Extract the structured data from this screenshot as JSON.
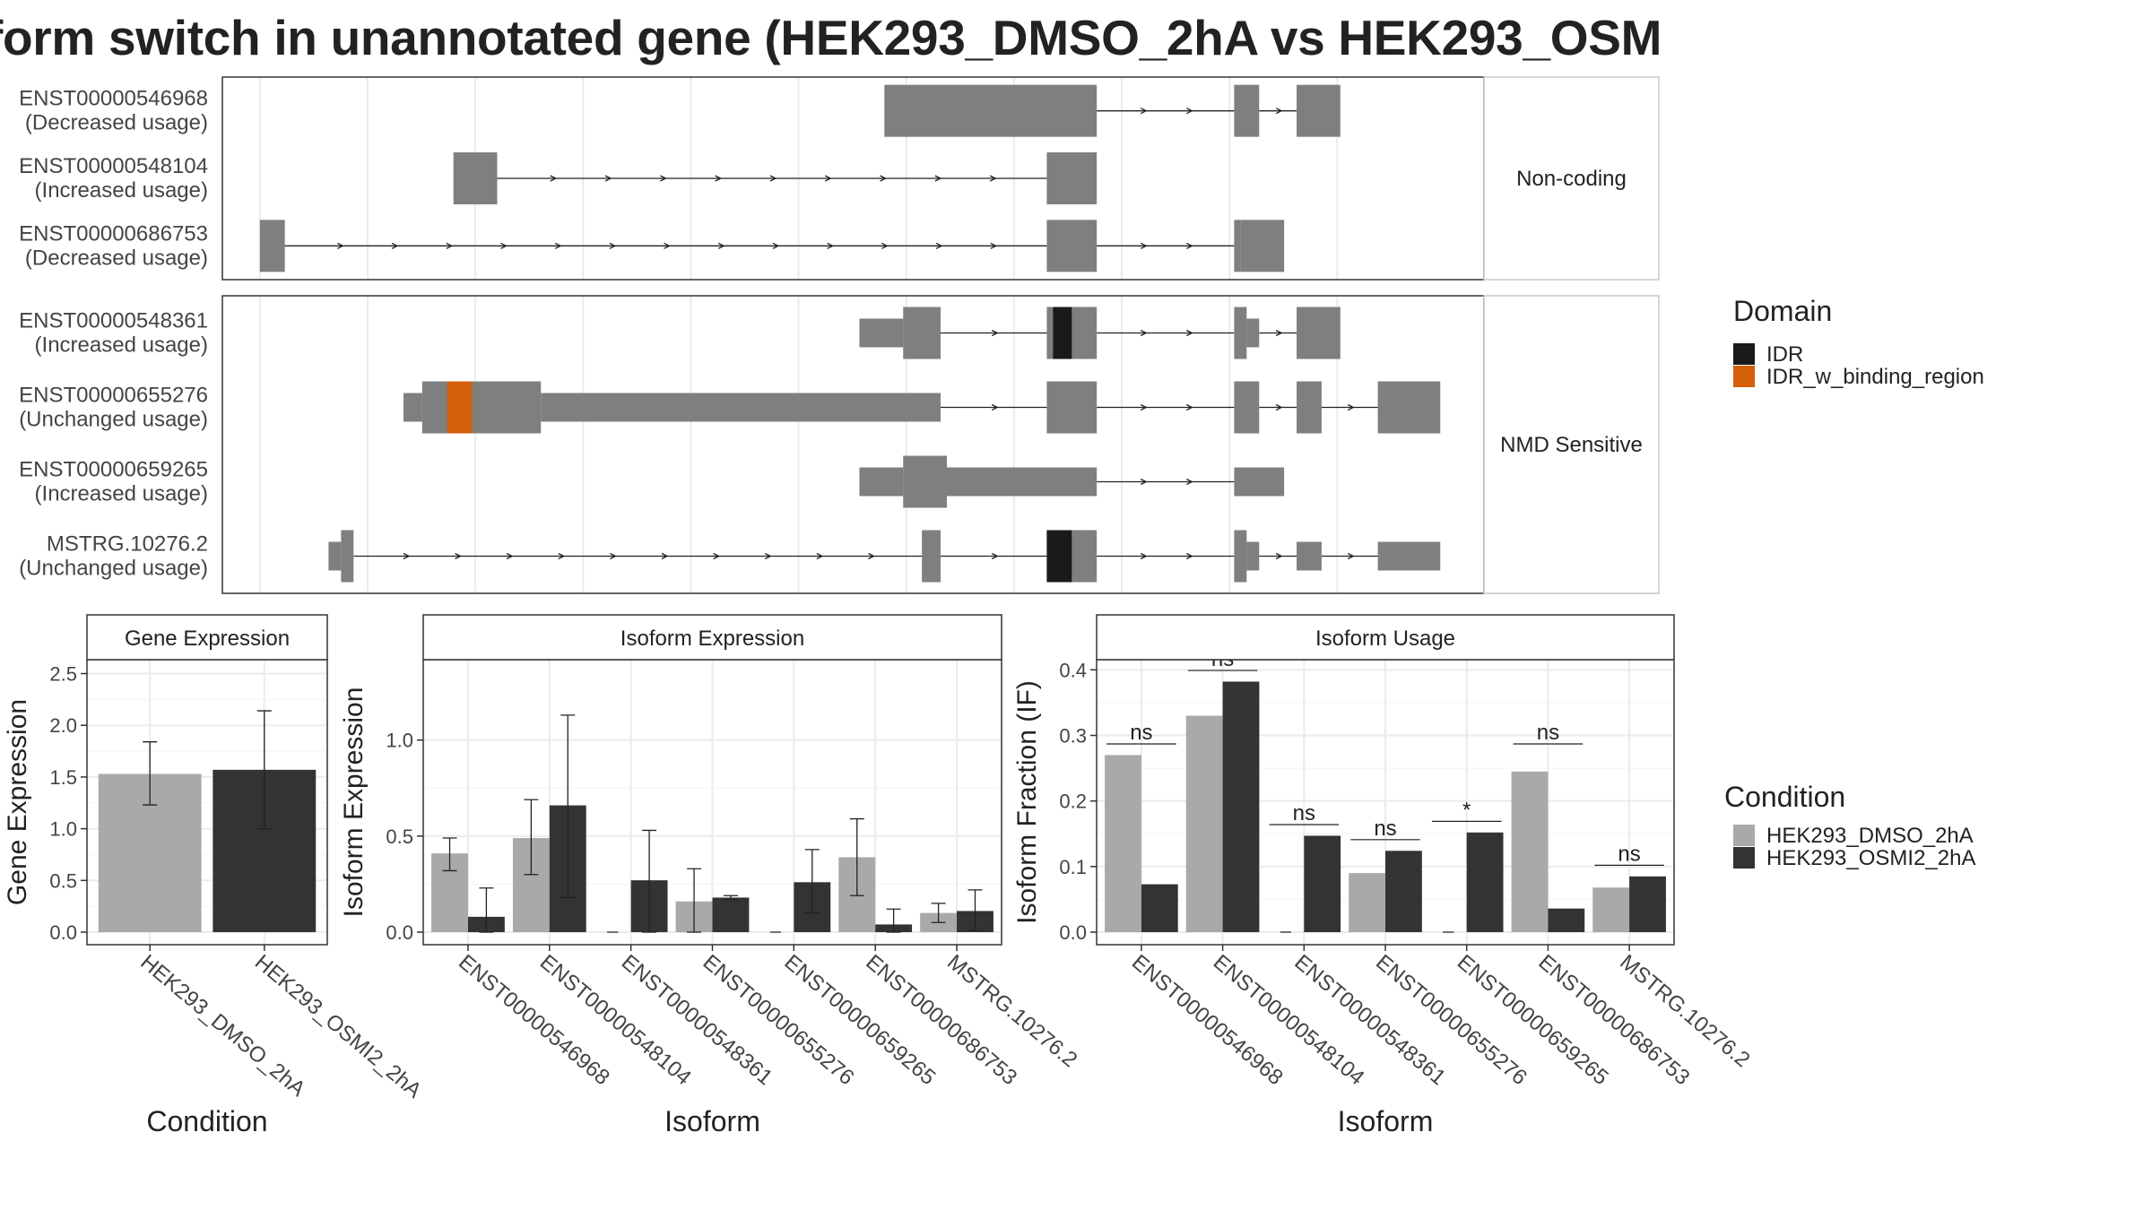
{
  "title": "form switch in unannotated gene (HEK293_DMSO_2hA vs HEK293_OSM",
  "colors": {
    "exon": "#7f7f7f",
    "IDR": "#1a1a1a",
    "IDR_w_binding_region": "#d35f0c",
    "HEK293_DMSO_2hA": "#a9a9a9",
    "HEK293_OSMI2_2hA": "#333333",
    "grid": "#ebebeb"
  },
  "structure": {
    "facets": [
      {
        "label": "Non-coding",
        "isoforms": [
          {
            "id": "ENST00000546968",
            "usage": "(Decreased usage)",
            "exons": [
              [
                10.0,
                13.4,
                "full"
              ],
              [
                15.6,
                16.0,
                "full"
              ],
              [
                16.6,
                17.3,
                "full"
              ]
            ],
            "domains": []
          },
          {
            "id": "ENST00000548104",
            "usage": "(Increased usage)",
            "exons": [
              [
                3.1,
                3.8,
                "full"
              ],
              [
                12.6,
                13.4,
                "full"
              ]
            ],
            "domains": []
          },
          {
            "id": "ENST00000686753",
            "usage": "(Decreased usage)",
            "exons": [
              [
                0.0,
                0.4,
                "full"
              ],
              [
                12.6,
                13.4,
                "full"
              ],
              [
                15.6,
                15.7,
                "full"
              ],
              [
                15.7,
                16.4,
                "full"
              ]
            ],
            "domains": []
          }
        ]
      },
      {
        "label": "NMD Sensitive",
        "isoforms": [
          {
            "id": "ENST00000548361",
            "usage": "(Increased usage)",
            "exons": [
              [
                9.6,
                10.3,
                "half"
              ],
              [
                10.3,
                10.9,
                "full"
              ],
              [
                12.6,
                13.4,
                "full"
              ],
              [
                15.6,
                15.8,
                "full"
              ],
              [
                15.8,
                16.0,
                "half"
              ],
              [
                16.6,
                17.3,
                "full"
              ]
            ],
            "domains": [
              [
                12.7,
                13.0,
                "IDR"
              ]
            ]
          },
          {
            "id": "ENST00000655276",
            "usage": "(Unchanged usage)",
            "exons": [
              [
                2.3,
                2.6,
                "half"
              ],
              [
                2.6,
                4.5,
                "full"
              ],
              [
                4.5,
                10.9,
                "half"
              ],
              [
                12.6,
                13.4,
                "full"
              ],
              [
                15.6,
                16.0,
                "full"
              ],
              [
                16.6,
                17.0,
                "full"
              ],
              [
                17.9,
                18.9,
                "full"
              ]
            ],
            "domains": [
              [
                3.0,
                3.4,
                "IDR_w_binding_region"
              ]
            ]
          },
          {
            "id": "ENST00000659265",
            "usage": "(Increased usage)",
            "exons": [
              [
                9.6,
                10.3,
                "half"
              ],
              [
                10.3,
                11.0,
                "full"
              ],
              [
                11.0,
                13.4,
                "half"
              ],
              [
                15.6,
                16.4,
                "half"
              ]
            ],
            "domains": []
          },
          {
            "id": "MSTRG.10276.2",
            "usage": "(Unchanged usage)",
            "exons": [
              [
                1.1,
                1.3,
                "half"
              ],
              [
                1.3,
                1.5,
                "full"
              ],
              [
                10.6,
                10.9,
                "full"
              ],
              [
                12.6,
                13.4,
                "full"
              ],
              [
                15.6,
                15.8,
                "full"
              ],
              [
                15.8,
                16.0,
                "half"
              ],
              [
                16.6,
                17.0,
                "half"
              ],
              [
                17.9,
                18.9,
                "half"
              ]
            ],
            "domains": [
              [
                12.6,
                13.0,
                "IDR"
              ]
            ]
          }
        ]
      }
    ]
  },
  "domain_legend": {
    "title": "Domain",
    "items": [
      "IDR",
      "IDR_w_binding_region"
    ]
  },
  "condition_legend": {
    "title": "Condition",
    "items": [
      "HEK293_DMSO_2hA",
      "HEK293_OSMI2_2hA"
    ]
  },
  "chart_data": [
    {
      "type": "bar",
      "panel": "Gene Expression",
      "xlabel": "Condition",
      "ylabel": "Gene Expression",
      "ylim": [
        0,
        2.5
      ],
      "yticks": [
        0.0,
        0.5,
        1.0,
        1.5,
        2.0,
        2.5
      ],
      "categories": [
        "HEK293_DMSO_2hA",
        "HEK293_OSMI2_2hA"
      ],
      "values": [
        1.53,
        1.57
      ],
      "err_low": [
        1.23,
        1.0
      ],
      "err_high": [
        1.84,
        2.14
      ]
    },
    {
      "type": "bar",
      "panel": "Isoform Expression",
      "xlabel": "Isoform",
      "ylabel": "Isoform Expression",
      "ylim": [
        0,
        1.4
      ],
      "yticks": [
        0.0,
        0.5,
        1.0
      ],
      "categories": [
        "ENST00000546968",
        "ENST00000548104",
        "ENST00000548361",
        "ENST00000655276",
        "ENST00000659265",
        "ENST00000686753",
        "MSTRG.10276.2"
      ],
      "series": [
        {
          "name": "HEK293_DMSO_2hA",
          "values": [
            0.41,
            0.49,
            0.0,
            0.16,
            0.0,
            0.39,
            0.1
          ],
          "err_low": [
            0.32,
            0.3,
            null,
            0.0,
            null,
            0.19,
            0.05
          ],
          "err_high": [
            0.49,
            0.69,
            null,
            0.33,
            null,
            0.59,
            0.15
          ]
        },
        {
          "name": "HEK293_OSMI2_2hA",
          "values": [
            0.08,
            0.66,
            0.27,
            0.18,
            0.26,
            0.04,
            0.11
          ],
          "err_low": [
            0.0,
            0.18,
            0.0,
            0.17,
            0.1,
            0.0,
            0.01
          ],
          "err_high": [
            0.23,
            1.13,
            0.53,
            0.19,
            0.43,
            0.12,
            0.22
          ]
        }
      ]
    },
    {
      "type": "bar",
      "panel": "Isoform Usage",
      "xlabel": "Isoform",
      "ylabel": "Isoform Fraction (IF)",
      "ylim": [
        0,
        0.41
      ],
      "yticks": [
        0.0,
        0.1,
        0.2,
        0.3,
        0.4
      ],
      "categories": [
        "ENST00000546968",
        "ENST00000548104",
        "ENST00000548361",
        "ENST00000655276",
        "ENST00000659265",
        "ENST00000686753",
        "MSTRG.10276.2"
      ],
      "series": [
        {
          "name": "HEK293_DMSO_2hA",
          "values": [
            0.27,
            0.33,
            0.0,
            0.09,
            0.0,
            0.245,
            0.068
          ]
        },
        {
          "name": "HEK293_OSMI2_2hA",
          "values": [
            0.073,
            0.382,
            0.147,
            0.124,
            0.152,
            0.036,
            0.085
          ]
        }
      ],
      "significance": [
        "ns",
        "ns",
        "ns",
        "ns",
        "*",
        "ns",
        "ns"
      ],
      "significance_level": [
        0.287,
        0.399,
        0.164,
        0.141,
        0.169,
        0.287,
        0.102
      ]
    }
  ]
}
